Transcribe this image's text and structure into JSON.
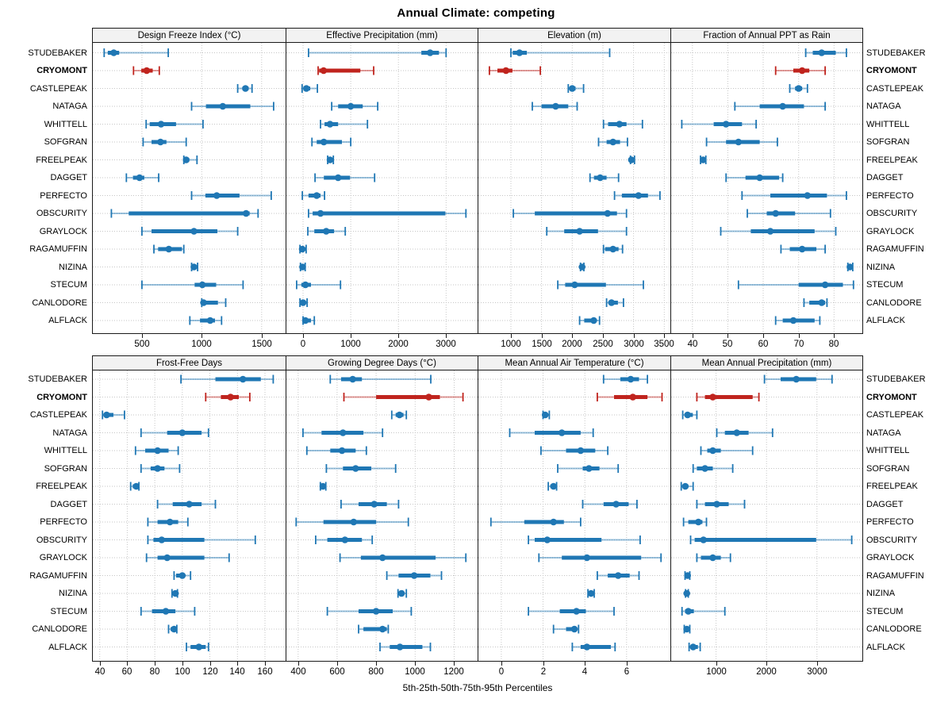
{
  "title": "Annual Climate: competing",
  "xlabel": "5th-25th-50th-75th-95th Percentiles",
  "rows": [
    "STUDEBAKER",
    "CRYOMONT",
    "CASTLEPEAK",
    "NATAGA",
    "WHITTELL",
    "SOFGRAN",
    "FREELPEAK",
    "DAGGET",
    "PERFECTO",
    "OBSCURITY",
    "GRAYLOCK",
    "RAGAMUFFIN",
    "NIZINA",
    "STECUM",
    "CANLODORE",
    "ALFLACK"
  ],
  "highlight_row": "CRYOMONT",
  "colors": {
    "series": "#1f77b4",
    "highlight": "#c0241e",
    "header_bg": "#f2f2f2",
    "grid": "#c6c6c6",
    "border": "#1a1a1a"
  },
  "chart_data": {
    "type": "percentile-dotplot-trellis",
    "percentiles": [
      "5th",
      "25th",
      "50th",
      "75th",
      "95th"
    ],
    "layout": {
      "rows": 2,
      "cols": 4,
      "legend": "none",
      "grid": "dotted"
    },
    "panels": [
      {
        "title": "Design Freeze Index (°C)",
        "slug": "design-freeze-index",
        "ticks": [
          500,
          1000,
          1500
        ],
        "xlim": [
          90,
          1700
        ],
        "values": [
          [
            185,
            215,
            265,
            310,
            720
          ],
          [
            430,
            495,
            540,
            590,
            645
          ],
          [
            1300,
            1340,
            1365,
            1390,
            1420
          ],
          [
            915,
            1035,
            1175,
            1405,
            1600
          ],
          [
            535,
            565,
            660,
            785,
            1010
          ],
          [
            510,
            580,
            655,
            705,
            870
          ],
          [
            850,
            860,
            870,
            895,
            960
          ],
          [
            370,
            425,
            480,
            520,
            640
          ],
          [
            915,
            1030,
            1125,
            1315,
            1580
          ],
          [
            245,
            390,
            1370,
            1400,
            1470
          ],
          [
            500,
            580,
            935,
            1130,
            1300
          ],
          [
            600,
            635,
            725,
            835,
            850
          ],
          [
            915,
            925,
            935,
            950,
            965
          ],
          [
            500,
            940,
            1005,
            1120,
            1345
          ],
          [
            1000,
            1005,
            1015,
            1135,
            1200
          ],
          [
            900,
            985,
            1070,
            1110,
            1165
          ]
        ]
      },
      {
        "title": "Effective Precipitation (mm)",
        "slug": "effective-precipitation",
        "ticks": [
          0,
          1000,
          2000,
          3000
        ],
        "xlim": [
          -350,
          3660
        ],
        "values": [
          [
            115,
            2480,
            2665,
            2850,
            3000
          ],
          [
            315,
            335,
            430,
            1200,
            1480
          ],
          [
            -20,
            30,
            70,
            150,
            300
          ],
          [
            600,
            735,
            1000,
            1250,
            1565
          ],
          [
            365,
            450,
            565,
            735,
            1350
          ],
          [
            185,
            285,
            435,
            815,
            1000
          ],
          [
            515,
            540,
            565,
            600,
            635
          ],
          [
            250,
            435,
            735,
            985,
            1500
          ],
          [
            -15,
            115,
            285,
            365,
            450
          ],
          [
            115,
            200,
            365,
            2985,
            3415
          ],
          [
            100,
            235,
            485,
            650,
            885
          ],
          [
            -65,
            -40,
            -15,
            30,
            65
          ],
          [
            -55,
            -30,
            -10,
            15,
            45
          ],
          [
            -135,
            -35,
            50,
            165,
            785
          ],
          [
            -65,
            -25,
            0,
            45,
            85
          ],
          [
            0,
            20,
            50,
            165,
            235
          ]
        ]
      },
      {
        "title": "Elevation (m)",
        "slug": "elevation",
        "ticks": [
          1000,
          1500,
          2000,
          2500,
          3000,
          3500
        ],
        "xlim": [
          470,
          3600
        ],
        "values": [
          [
            1000,
            1030,
            1140,
            1260,
            2610
          ],
          [
            650,
            780,
            920,
            1025,
            1480
          ],
          [
            1935,
            1965,
            2000,
            2055,
            2185
          ],
          [
            1350,
            1500,
            1730,
            1935,
            2080
          ],
          [
            2510,
            2585,
            2770,
            2885,
            3145
          ],
          [
            2430,
            2560,
            2665,
            2780,
            2900
          ],
          [
            2950,
            2960,
            2965,
            2990,
            3015
          ],
          [
            2290,
            2355,
            2455,
            2560,
            2755
          ],
          [
            2690,
            2810,
            3080,
            3235,
            3430
          ],
          [
            1040,
            1390,
            2575,
            2730,
            2885
          ],
          [
            1585,
            1870,
            2120,
            2420,
            2885
          ],
          [
            2510,
            2535,
            2665,
            2755,
            2820
          ],
          [
            2135,
            2145,
            2160,
            2175,
            2190
          ],
          [
            1765,
            1885,
            2040,
            2550,
            3160
          ],
          [
            2560,
            2600,
            2640,
            2745,
            2835
          ],
          [
            2120,
            2195,
            2350,
            2380,
            2445
          ]
        ]
      },
      {
        "title": "Fraction of Annual PPT as Rain",
        "slug": "fraction-ppt-rain",
        "ticks": [
          40,
          50,
          60,
          70,
          80
        ],
        "xlim": [
          34,
          88
        ],
        "values": [
          [
            72,
            74,
            76.5,
            80.5,
            83.5
          ],
          [
            63.5,
            68.5,
            71,
            73,
            77.5
          ],
          [
            67.5,
            69,
            70,
            71,
            72.5
          ],
          [
            52,
            59,
            65.5,
            71.5,
            77.5
          ],
          [
            37,
            46,
            49.5,
            54,
            58
          ],
          [
            44,
            49.5,
            53,
            59,
            64
          ],
          [
            42.3,
            42.7,
            43,
            43.4,
            43.8
          ],
          [
            49.5,
            55,
            59,
            64.5,
            65.5
          ],
          [
            54,
            62,
            72.5,
            78,
            83.5
          ],
          [
            55.5,
            61,
            63.5,
            69,
            79
          ],
          [
            48,
            56.5,
            62,
            74.5,
            80.5
          ],
          [
            65,
            67.5,
            71,
            75,
            77.5
          ],
          [
            83.9,
            84.2,
            84.5,
            85,
            85.3
          ],
          [
            53,
            70,
            77.5,
            82.5,
            85.5
          ],
          [
            71.5,
            73,
            76.5,
            77.5,
            78
          ],
          [
            63.5,
            65.5,
            68.5,
            74.5,
            76
          ]
        ]
      },
      {
        "title": "Frost-Free Days",
        "slug": "frost-free-days",
        "ticks": [
          40,
          60,
          80,
          100,
          120,
          140,
          160
        ],
        "xlim": [
          35,
          175
        ],
        "values": [
          [
            99,
            124,
            144,
            157,
            166
          ],
          [
            117,
            128,
            135,
            141,
            149
          ],
          [
            42,
            43,
            45,
            50,
            58
          ],
          [
            70,
            89,
            100,
            114,
            119
          ],
          [
            66,
            73,
            82,
            90,
            97
          ],
          [
            70,
            77,
            82,
            87,
            98
          ],
          [
            62.5,
            64,
            66.5,
            67.5,
            68.5
          ],
          [
            82,
            93,
            105,
            114,
            124
          ],
          [
            75,
            82,
            91,
            97,
            104
          ],
          [
            75,
            79,
            85,
            116,
            153
          ],
          [
            74,
            82,
            89,
            116,
            134
          ],
          [
            94,
            95.5,
            100,
            102,
            106
          ],
          [
            92.5,
            93.5,
            95,
            95.5,
            96.5
          ],
          [
            70,
            78,
            88,
            95,
            109
          ],
          [
            90,
            91.5,
            94,
            95,
            96
          ],
          [
            103,
            106,
            112,
            117,
            119
          ]
        ]
      },
      {
        "title": "Growing Degree Days (°C)",
        "slug": "growing-degree-days",
        "ticks": [
          400,
          600,
          800,
          1000,
          1200
        ],
        "xlim": [
          340,
          1320
        ],
        "values": [
          [
            565,
            620,
            680,
            727,
            1080
          ],
          [
            635,
            800,
            1070,
            1127,
            1245
          ],
          [
            880,
            900,
            920,
            940,
            955
          ],
          [
            425,
            520,
            630,
            735,
            833
          ],
          [
            445,
            565,
            625,
            695,
            750
          ],
          [
            545,
            630,
            695,
            775,
            900
          ],
          [
            514,
            520,
            527,
            535,
            542
          ],
          [
            620,
            710,
            790,
            855,
            915
          ],
          [
            390,
            530,
            685,
            800,
            965
          ],
          [
            490,
            550,
            640,
            727,
            780
          ],
          [
            615,
            722,
            833,
            1105,
            1260
          ],
          [
            855,
            915,
            995,
            1078,
            1135
          ],
          [
            912,
            920,
            930,
            944,
            955
          ],
          [
            550,
            710,
            800,
            885,
            980
          ],
          [
            710,
            735,
            833,
            855,
            862
          ],
          [
            820,
            870,
            922,
            1037,
            1078
          ]
        ]
      },
      {
        "title": "Mean Annual Air Temperature (°C)",
        "slug": "mean-annual-air-temperature",
        "ticks": [
          0,
          2,
          4,
          6
        ],
        "xlim": [
          -1.1,
          8.1
        ],
        "values": [
          [
            4.9,
            5.7,
            6.2,
            6.6,
            7.0
          ],
          [
            4.6,
            5.4,
            6.3,
            7.0,
            7.7
          ],
          [
            2.0,
            2.05,
            2.1,
            2.2,
            2.3
          ],
          [
            0.4,
            1.6,
            2.9,
            3.8,
            4.4
          ],
          [
            1.9,
            3.1,
            3.8,
            4.5,
            5.1
          ],
          [
            2.7,
            3.9,
            4.2,
            4.7,
            5.6
          ],
          [
            2.25,
            2.35,
            2.5,
            2.55,
            2.65
          ],
          [
            3.9,
            4.9,
            5.5,
            6.1,
            6.5
          ],
          [
            -0.5,
            1.1,
            2.5,
            3.0,
            3.8
          ],
          [
            1.3,
            1.6,
            2.2,
            4.8,
            6.65
          ],
          [
            1.8,
            2.9,
            4.1,
            6.7,
            7.65
          ],
          [
            4.6,
            5.1,
            5.6,
            6.15,
            6.6
          ],
          [
            4.15,
            4.2,
            4.3,
            4.35,
            4.45
          ],
          [
            1.3,
            2.8,
            3.6,
            4.05,
            5.4
          ],
          [
            2.5,
            3.1,
            3.5,
            3.6,
            3.7
          ],
          [
            3.4,
            3.8,
            4.1,
            5.25,
            5.45
          ]
        ]
      },
      {
        "title": "Mean Annual Precipitation (mm)",
        "slug": "mean-annual-precipitation",
        "ticks": [
          1000,
          2000,
          3000
        ],
        "xlim": [
          110,
          3900
        ],
        "values": [
          [
            1960,
            2280,
            2590,
            2985,
            3300
          ],
          [
            620,
            780,
            935,
            1725,
            1850
          ],
          [
            340,
            390,
            435,
            540,
            620
          ],
          [
            1015,
            1175,
            1410,
            1645,
            2120
          ],
          [
            700,
            825,
            935,
            1095,
            1725
          ],
          [
            545,
            620,
            780,
            935,
            1330
          ],
          [
            310,
            350,
            390,
            450,
            545
          ],
          [
            620,
            780,
            1015,
            1250,
            1565
          ],
          [
            355,
            450,
            650,
            730,
            810
          ],
          [
            495,
            575,
            750,
            2985,
            3690
          ],
          [
            620,
            700,
            935,
            1095,
            1285
          ],
          [
            385,
            410,
            435,
            460,
            480
          ],
          [
            395,
            405,
            420,
            435,
            450
          ],
          [
            325,
            385,
            450,
            560,
            1175
          ],
          [
            370,
            395,
            420,
            450,
            480
          ],
          [
            465,
            510,
            545,
            640,
            685
          ]
        ]
      }
    ]
  }
}
